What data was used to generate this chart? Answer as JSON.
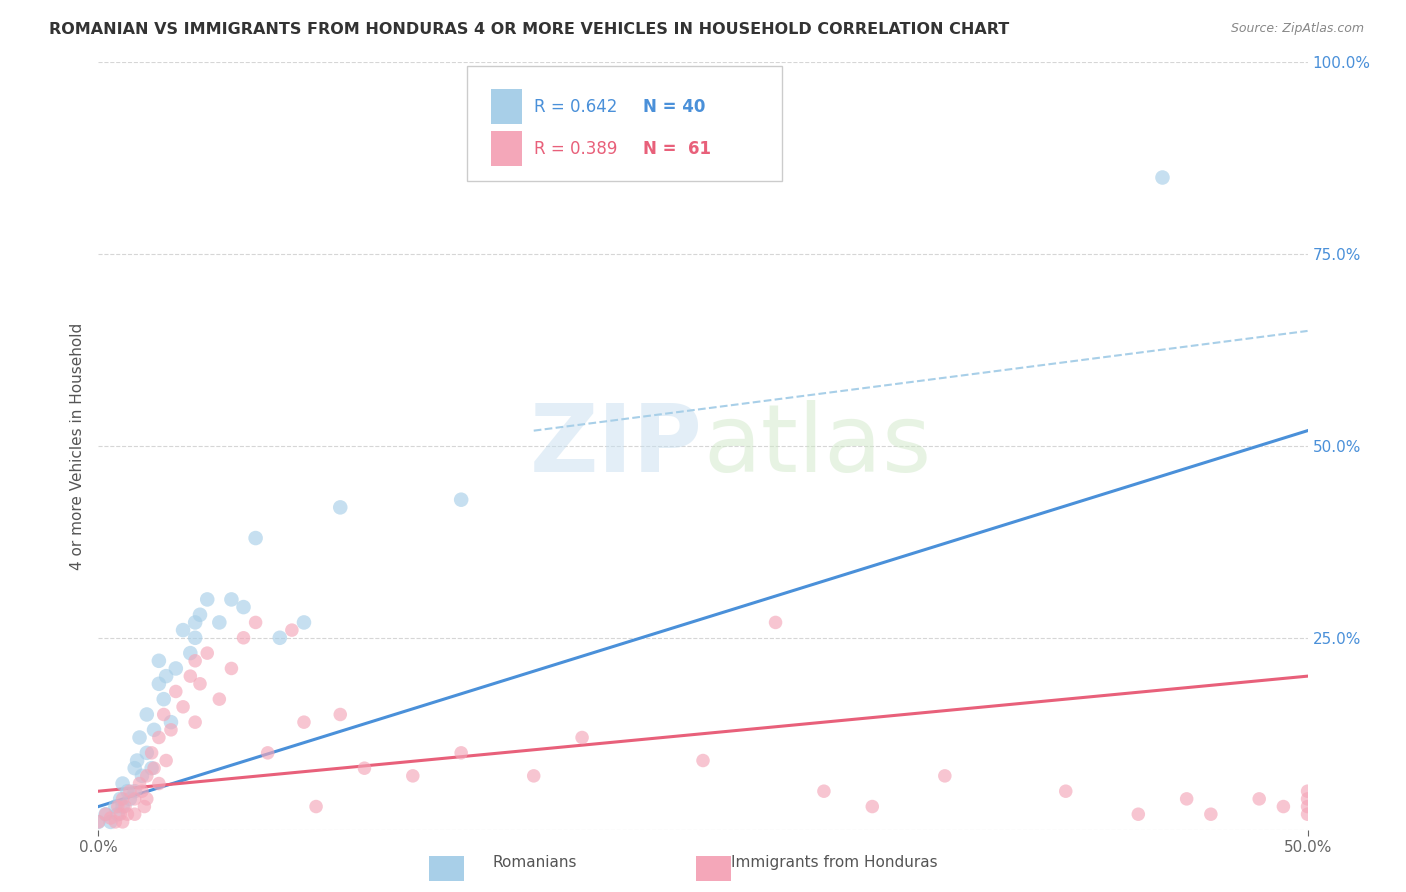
{
  "title": "ROMANIAN VS IMMIGRANTS FROM HONDURAS 4 OR MORE VEHICLES IN HOUSEHOLD CORRELATION CHART",
  "source": "Source: ZipAtlas.com",
  "ylabel_label": "4 or more Vehicles in Household",
  "yaxis_ticks": [
    0.0,
    0.25,
    0.5,
    0.75,
    1.0
  ],
  "yaxis_tick_labels": [
    "",
    "25.0%",
    "50.0%",
    "75.0%",
    "100.0%"
  ],
  "xaxis_range": [
    0.0,
    0.5
  ],
  "yaxis_range": [
    0.0,
    1.0
  ],
  "legend_blue_R": "0.642",
  "legend_blue_N": "40",
  "legend_pink_R": "0.389",
  "legend_pink_N": "61",
  "blue_color": "#a8cfe8",
  "pink_color": "#f4a7b9",
  "blue_line_color": "#4a90d9",
  "pink_line_color": "#e8607a",
  "dashed_line_color": "#a8cfe8",
  "watermark_zip": "ZIP",
  "watermark_atlas": "atlas",
  "blue_scatter_x": [
    0.0,
    0.003,
    0.005,
    0.007,
    0.008,
    0.009,
    0.01,
    0.01,
    0.012,
    0.013,
    0.015,
    0.015,
    0.016,
    0.017,
    0.018,
    0.02,
    0.02,
    0.022,
    0.023,
    0.025,
    0.025,
    0.027,
    0.028,
    0.03,
    0.032,
    0.035,
    0.038,
    0.04,
    0.04,
    0.042,
    0.045,
    0.05,
    0.055,
    0.06,
    0.065,
    0.075,
    0.085,
    0.1,
    0.15,
    0.44
  ],
  "blue_scatter_y": [
    0.01,
    0.02,
    0.01,
    0.03,
    0.02,
    0.04,
    0.03,
    0.06,
    0.05,
    0.04,
    0.08,
    0.05,
    0.09,
    0.12,
    0.07,
    0.1,
    0.15,
    0.08,
    0.13,
    0.19,
    0.22,
    0.17,
    0.2,
    0.14,
    0.21,
    0.26,
    0.23,
    0.27,
    0.25,
    0.28,
    0.3,
    0.27,
    0.3,
    0.29,
    0.38,
    0.25,
    0.27,
    0.42,
    0.43,
    0.85
  ],
  "pink_scatter_x": [
    0.0,
    0.003,
    0.005,
    0.007,
    0.008,
    0.009,
    0.01,
    0.01,
    0.011,
    0.012,
    0.013,
    0.015,
    0.015,
    0.017,
    0.018,
    0.019,
    0.02,
    0.02,
    0.022,
    0.023,
    0.025,
    0.025,
    0.027,
    0.028,
    0.03,
    0.032,
    0.035,
    0.038,
    0.04,
    0.04,
    0.042,
    0.045,
    0.05,
    0.055,
    0.06,
    0.065,
    0.07,
    0.08,
    0.085,
    0.09,
    0.1,
    0.11,
    0.13,
    0.15,
    0.18,
    0.2,
    0.25,
    0.28,
    0.3,
    0.32,
    0.35,
    0.4,
    0.43,
    0.45,
    0.46,
    0.48,
    0.49,
    0.5,
    0.5,
    0.5,
    0.5
  ],
  "pink_scatter_y": [
    0.01,
    0.02,
    0.015,
    0.01,
    0.03,
    0.02,
    0.04,
    0.01,
    0.03,
    0.02,
    0.05,
    0.04,
    0.02,
    0.06,
    0.05,
    0.03,
    0.07,
    0.04,
    0.1,
    0.08,
    0.12,
    0.06,
    0.15,
    0.09,
    0.13,
    0.18,
    0.16,
    0.2,
    0.22,
    0.14,
    0.19,
    0.23,
    0.17,
    0.21,
    0.25,
    0.27,
    0.1,
    0.26,
    0.14,
    0.03,
    0.15,
    0.08,
    0.07,
    0.1,
    0.07,
    0.12,
    0.09,
    0.27,
    0.05,
    0.03,
    0.07,
    0.05,
    0.02,
    0.04,
    0.02,
    0.04,
    0.03,
    0.03,
    0.05,
    0.02,
    0.04
  ],
  "blue_line_x0": 0.0,
  "blue_line_x1": 0.5,
  "blue_line_y0": 0.03,
  "blue_line_y1": 0.52,
  "pink_line_x0": 0.0,
  "pink_line_x1": 0.5,
  "pink_line_y0": 0.05,
  "pink_line_y1": 0.2,
  "dashed_line_x0": 0.18,
  "dashed_line_x1": 0.5,
  "dashed_line_y0": 0.52,
  "dashed_line_y1": 0.65
}
